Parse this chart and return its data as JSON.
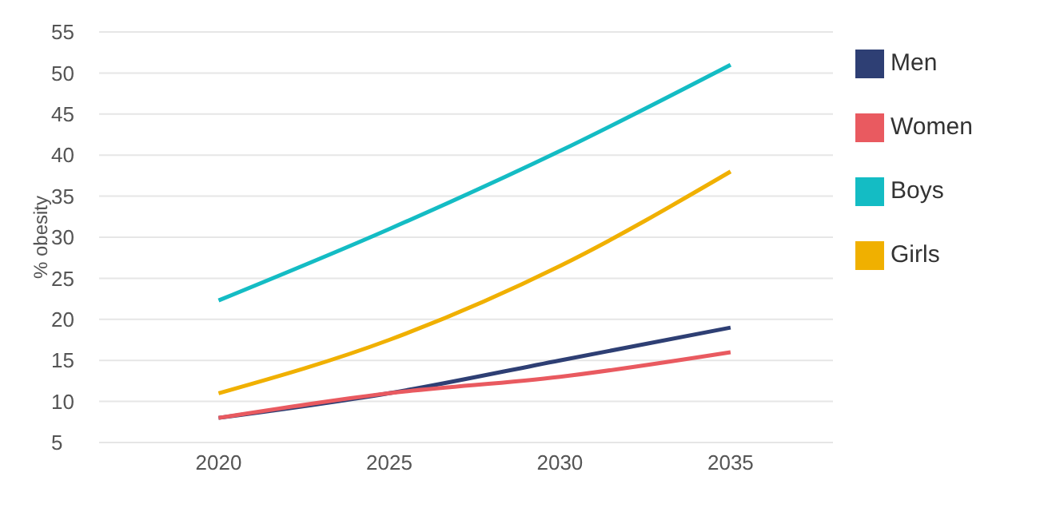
{
  "chart_data": {
    "type": "line",
    "ylabel": "% obesity",
    "x": [
      2020,
      2025,
      2030,
      2035
    ],
    "xlim": [
      2016.5,
      2038
    ],
    "xticks": [
      2020,
      2025,
      2030,
      2035
    ],
    "ylim": [
      5,
      55
    ],
    "yticks": [
      5,
      10,
      15,
      20,
      25,
      30,
      35,
      40,
      45,
      50,
      55
    ],
    "grid": "y",
    "legend": "right",
    "marker": "none",
    "line_style": "solid",
    "series": [
      {
        "name": "Men",
        "color": "#2e3f74",
        "values": [
          8,
          11,
          15,
          19
        ]
      },
      {
        "name": "Women",
        "color": "#e95a60",
        "values": [
          8,
          11,
          13,
          16
        ]
      },
      {
        "name": "Boys",
        "color": "#14bcc4",
        "values": [
          22.3,
          31,
          40.5,
          51
        ]
      },
      {
        "name": "Girls",
        "color": "#f0b000",
        "values": [
          11,
          17.5,
          26.5,
          38
        ]
      }
    ]
  }
}
